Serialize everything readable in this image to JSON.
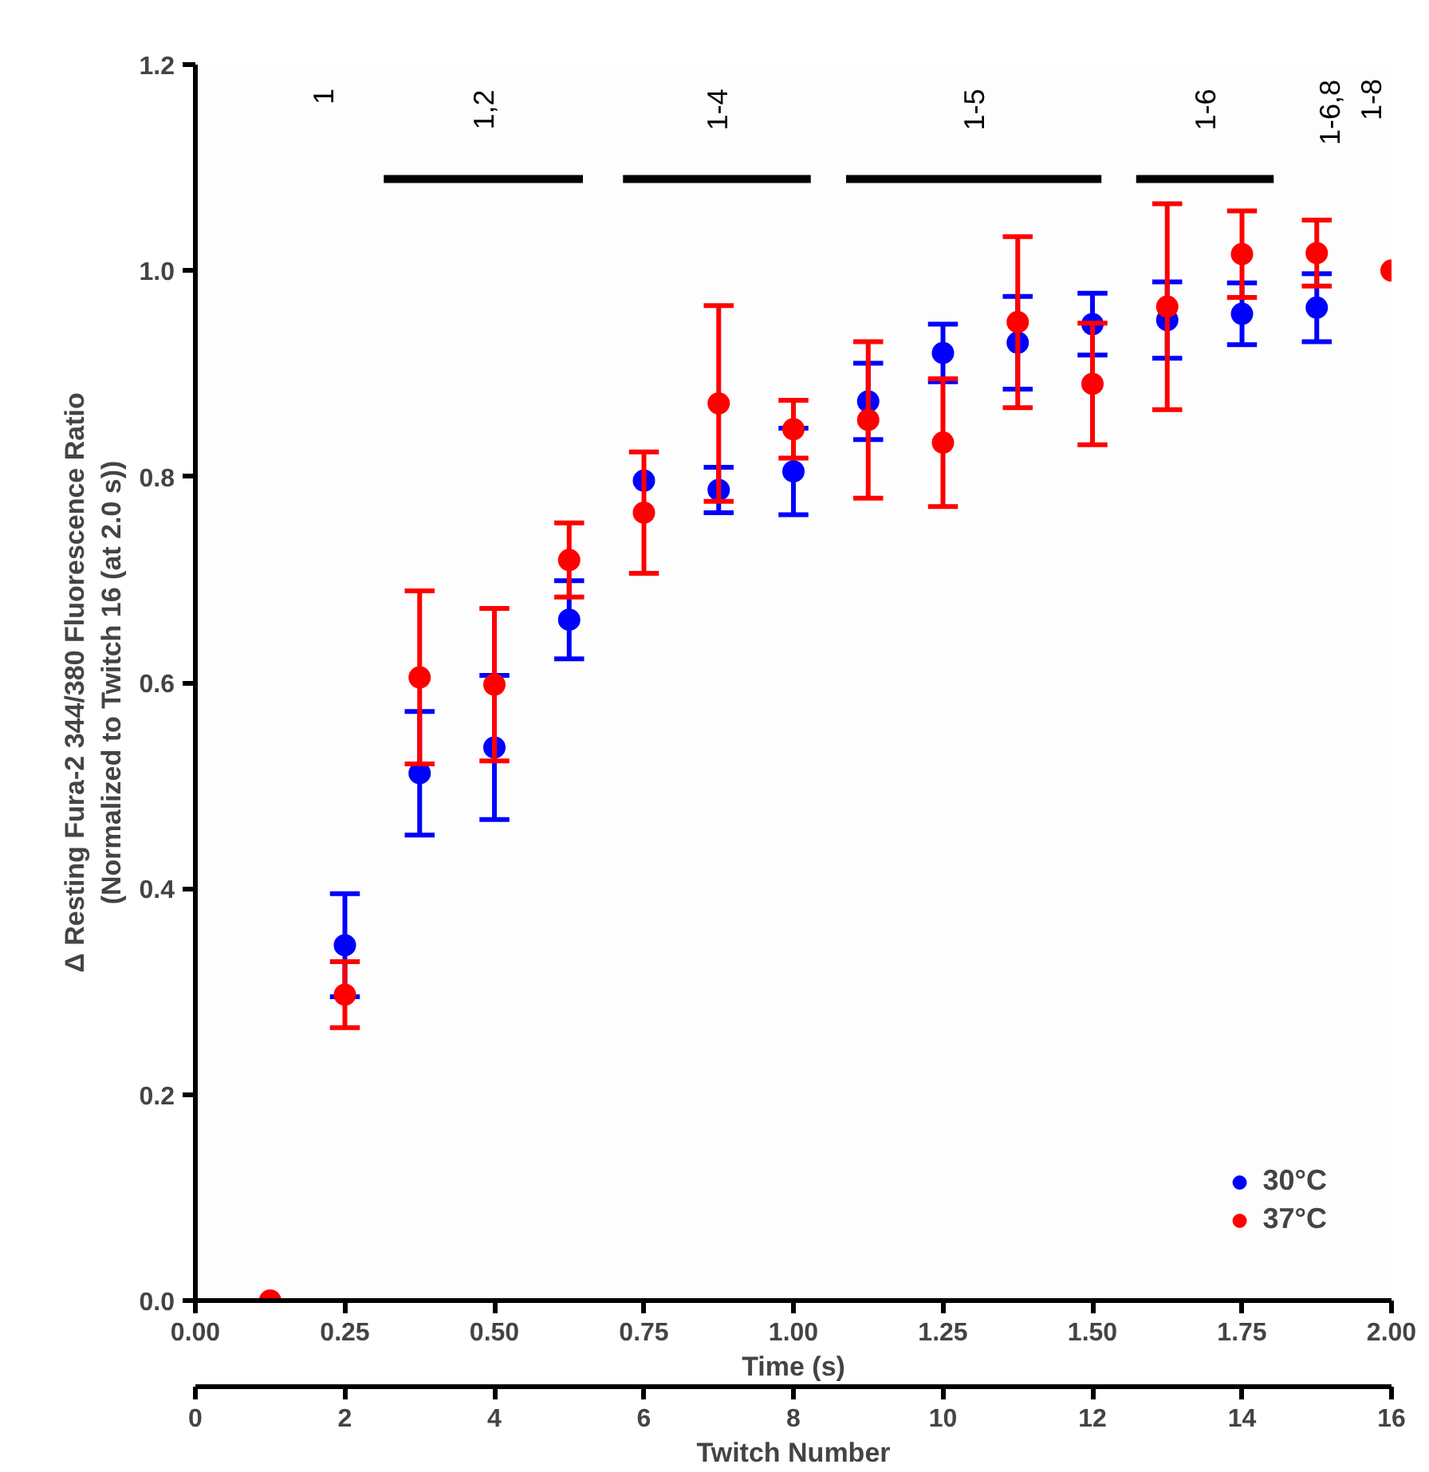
{
  "chart_data": {
    "type": "scatter",
    "xlabel": "Time (s)",
    "x2label": "Twitch Number",
    "ylabel": "Δ Resting Fura-2 344/380 Fluorescence Ratio\n(Normalized to Twitch 16 (at 2.0 s))",
    "x": [
      0.125,
      0.25,
      0.375,
      0.5,
      0.625,
      0.75,
      0.875,
      1.0,
      1.125,
      1.25,
      1.375,
      1.5,
      1.625,
      1.75,
      1.875,
      2.0
    ],
    "series": [
      {
        "name": "30°C",
        "color": "#0000ff",
        "values": [
          null,
          0.345,
          0.512,
          0.537,
          0.661,
          0.796,
          0.787,
          0.805,
          0.873,
          0.92,
          0.93,
          0.948,
          0.952,
          0.958,
          0.964,
          null
        ],
        "errors": [
          null,
          0.05,
          0.06,
          0.07,
          0.038,
          null,
          0.022,
          0.042,
          0.037,
          0.028,
          0.045,
          0.03,
          0.037,
          0.03,
          0.033,
          null
        ]
      },
      {
        "name": "37°C",
        "color": "#ff0000",
        "values": [
          0.0,
          0.297,
          0.605,
          0.598,
          0.719,
          0.765,
          0.871,
          0.846,
          0.855,
          0.833,
          0.95,
          0.89,
          0.965,
          1.016,
          1.017,
          1.0
        ],
        "errors": [
          null,
          0.032,
          0.084,
          0.074,
          0.036,
          0.059,
          0.095,
          0.028,
          0.076,
          0.062,
          0.083,
          0.059,
          0.1,
          0.042,
          0.032,
          null
        ]
      },
      {
        "type": "line",
        "marker": "none",
        "name": "1,2",
        "color": "#000000",
        "x": [
          0.315,
          0.648
        ],
        "values": [
          1.089,
          1.089
        ]
      },
      {
        "type": "line",
        "marker": "none",
        "name": "1-4",
        "color": "#000000",
        "x": [
          0.715,
          1.029
        ],
        "values": [
          1.089,
          1.089
        ]
      },
      {
        "type": "line",
        "marker": "none",
        "name": "1-5",
        "color": "#000000",
        "x": [
          1.088,
          1.515
        ],
        "values": [
          1.089,
          1.089
        ]
      },
      {
        "type": "line",
        "marker": "none",
        "name": "1-6",
        "color": "#000000",
        "x": [
          1.573,
          1.803
        ],
        "values": [
          1.089,
          1.089
        ]
      }
    ],
    "xlim": [
      0,
      2
    ],
    "xticks": [
      {
        "value": 0,
        "label": "0.00"
      },
      0.25,
      {
        "value": 0.5,
        "label": "0.50"
      },
      0.75,
      {
        "value": 1,
        "label": "1.00"
      },
      1.25,
      {
        "value": 1.5,
        "label": "1.50"
      },
      1.75,
      {
        "value": 2,
        "label": "2.00"
      }
    ],
    "x2lim": [
      0,
      16
    ],
    "x2ticks": [
      0,
      2,
      4,
      6,
      8,
      10,
      12,
      14,
      16
    ],
    "ylim": [
      0,
      1.2
    ],
    "yticks": [
      {
        "value": 0,
        "label": "0.0"
      },
      0.2,
      0.4,
      0.6,
      0.8,
      {
        "value": 1,
        "label": "1.0"
      },
      1.2
    ],
    "annotations": [
      "1",
      "1-6,8",
      "1-8"
    ],
    "marker": "circle",
    "grid": false,
    "legend": "bottom right"
  }
}
